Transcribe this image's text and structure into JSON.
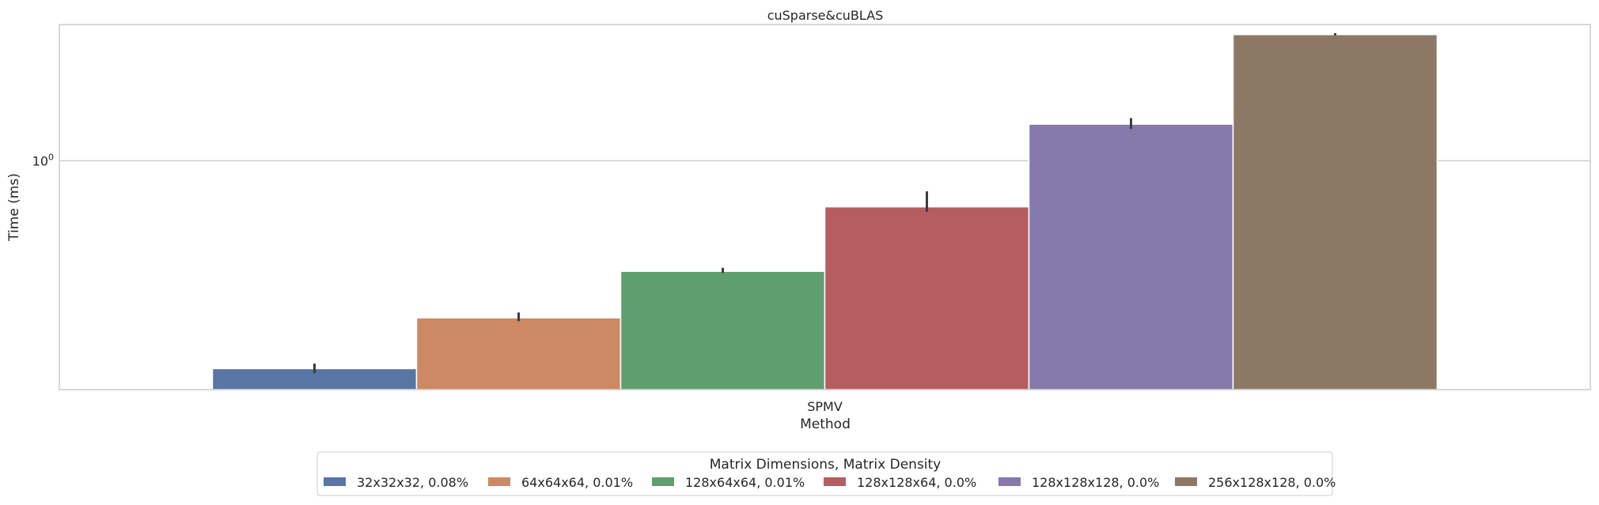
{
  "chart_data": {
    "type": "bar",
    "title": "cuSparse&cuBLAS",
    "xlabel": "Method",
    "ylabel": "Time (ms)",
    "yscale": "log",
    "ylim": [
      0.122,
      3.5
    ],
    "grid": true,
    "legend_placement": "bottom-center",
    "legend_title": "Matrix Dimensions, Matrix Density",
    "categories": [
      "SPMV"
    ],
    "y_ticks": [
      {
        "value": 1,
        "base": "10",
        "exponent": "0"
      }
    ],
    "series": [
      {
        "name": "32x32x32, 0.08%",
        "values": [
          0.148
        ],
        "err_low": [
          0.142
        ],
        "err_high": [
          0.155
        ],
        "color": "#5875a4"
      },
      {
        "name": "64x64x64, 0.01%",
        "values": [
          0.236
        ],
        "err_low": [
          0.229
        ],
        "err_high": [
          0.248
        ],
        "color": "#cc8963"
      },
      {
        "name": "128x64x64, 0.01%",
        "values": [
          0.362
        ],
        "err_low": [
          0.357
        ],
        "err_high": [
          0.374
        ],
        "color": "#5f9e6e"
      },
      {
        "name": "128x128x64, 0.0%",
        "values": [
          0.655
        ],
        "err_low": [
          0.626
        ],
        "err_high": [
          0.755
        ],
        "color": "#b55d60"
      },
      {
        "name": "128x128x128, 0.0%",
        "values": [
          1.4
        ],
        "err_low": [
          1.34
        ],
        "err_high": [
          1.48
        ],
        "color": "#857aab"
      },
      {
        "name": "256x128x128, 0.0%",
        "values": [
          3.19
        ],
        "err_low": [
          3.17
        ],
        "err_high": [
          3.23
        ],
        "color": "#8d7866"
      }
    ]
  }
}
